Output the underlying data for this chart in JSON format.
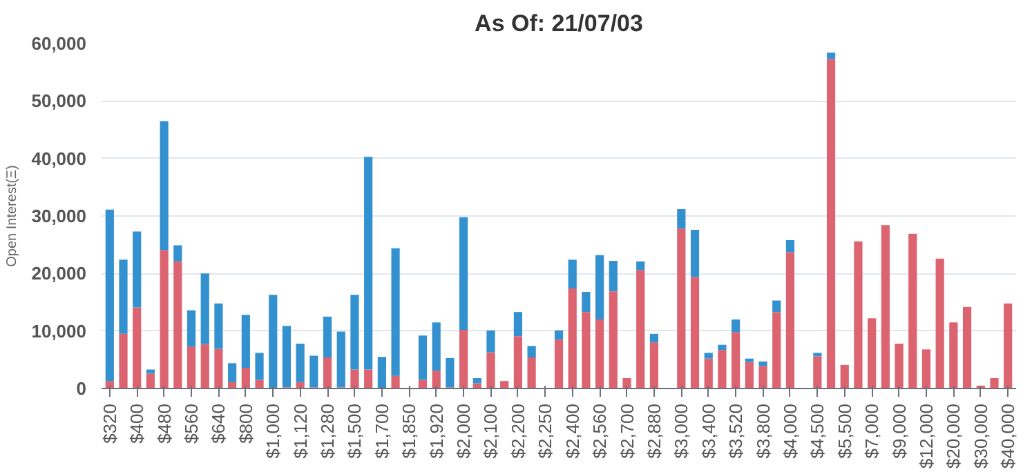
{
  "chart_data": {
    "type": "bar",
    "title": "As Of: 21/07/03",
    "ylabel": "Open Interest(Ξ)",
    "stacked": true,
    "categories": [
      "$320",
      null,
      "$400",
      null,
      "$480",
      null,
      "$560",
      null,
      "$640",
      null,
      "$800",
      null,
      "$1,000",
      null,
      "$1,120",
      null,
      "$1,280",
      null,
      "$1,500",
      null,
      "$1,700",
      null,
      "$1,850",
      null,
      "$1,920",
      null,
      "$2,000",
      null,
      "$2,100",
      null,
      "$2,200",
      null,
      "$2,250",
      null,
      "$2,400",
      null,
      "$2,560",
      null,
      "$2,700",
      null,
      "$2,880",
      null,
      "$3,000",
      null,
      "$3,400",
      null,
      "$3,520",
      null,
      "$3,800",
      null,
      "$4,000",
      null,
      "$4,500",
      null,
      "$5,500",
      null,
      "$7,000",
      null,
      "$9,000",
      null,
      "$12,000",
      null,
      "$20,000",
      null,
      "$30,000",
      null,
      "$40,000"
    ],
    "series": [
      {
        "color": "#dc6470",
        "values": [
          1300,
          9500,
          14100,
          2600,
          24100,
          22100,
          7300,
          7700,
          6900,
          1100,
          3600,
          1500,
          null,
          200,
          1100,
          200,
          5400,
          200,
          3300,
          3300,
          null,
          2200,
          null,
          1500,
          3100,
          200,
          10200,
          900,
          6300,
          1300,
          9100,
          5400,
          null,
          8500,
          17400,
          13300,
          12000,
          16900,
          1800,
          20600,
          8000,
          0,
          27800,
          19400,
          5200,
          6700,
          9800,
          4600,
          3900,
          13300,
          23700,
          0,
          5600,
          57300,
          4100,
          25600,
          12200,
          28400,
          7800,
          26900,
          6800,
          22600,
          11500,
          14200,
          500,
          1800,
          14800
        ]
      },
      {
        "color": "#3491d0",
        "values": [
          29800,
          12900,
          13200,
          700,
          22400,
          2800,
          6300,
          12300,
          7900,
          3300,
          9200,
          4700,
          16300,
          10700,
          6700,
          5500,
          7100,
          9700,
          13000,
          37000,
          5500,
          22200,
          100,
          7700,
          8400,
          5100,
          19600,
          900,
          3800,
          0,
          4200,
          2000,
          0,
          1600,
          5000,
          3500,
          11200,
          5300,
          0,
          1500,
          1500,
          0,
          3400,
          8200,
          1000,
          900,
          2200,
          600,
          800,
          2000,
          2100,
          0,
          600,
          1100,
          0,
          0,
          0,
          0,
          0,
          0,
          0,
          0,
          0,
          0,
          0,
          0,
          0
        ]
      }
    ],
    "ylim": [
      0,
      60000
    ],
    "yticks": [
      {
        "value": 0,
        "label": "0"
      },
      {
        "value": 10000,
        "label": "10,000"
      },
      {
        "value": 20000,
        "label": "20,000"
      },
      {
        "value": 30000,
        "label": "30,000"
      },
      {
        "value": 40000,
        "label": "40,000"
      },
      {
        "value": 50000,
        "label": "50,000"
      },
      {
        "value": 60000,
        "label": "60,000"
      }
    ],
    "grid": "y"
  }
}
